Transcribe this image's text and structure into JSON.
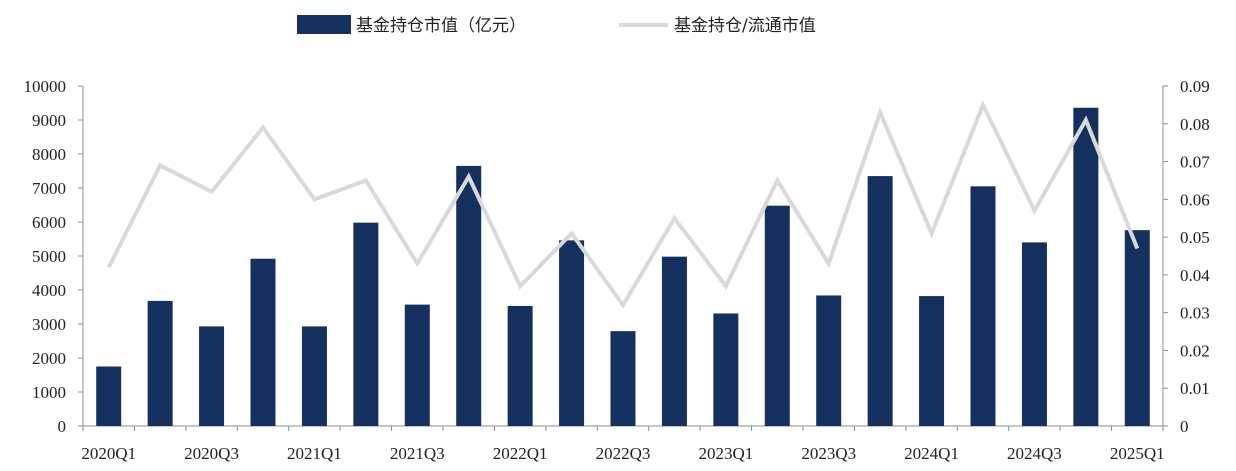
{
  "chart_data": {
    "type": "bar",
    "categories": [
      "2020Q1",
      "2020Q2",
      "2020Q3",
      "2020Q4",
      "2021Q1",
      "2021Q2",
      "2021Q3",
      "2021Q4",
      "2022Q1",
      "2022Q2",
      "2022Q3",
      "2022Q4",
      "2023Q1",
      "2023Q2",
      "2023Q3",
      "2023Q4",
      "2024Q1",
      "2024Q2",
      "2024Q3",
      "2024Q4",
      "2025Q1"
    ],
    "x_tick_labels": [
      "2020Q1",
      "2020Q3",
      "2021Q1",
      "2021Q3",
      "2022Q1",
      "2022Q3",
      "2023Q1",
      "2023Q3",
      "2024Q1",
      "2024Q3",
      "2025Q1"
    ],
    "series": [
      {
        "name": "基金持仓市值（亿元）",
        "type": "bar",
        "axis": "left",
        "color": "#14305e",
        "values": [
          1750,
          3680,
          2930,
          4920,
          2930,
          5980,
          3570,
          7650,
          3530,
          5460,
          2790,
          4980,
          3310,
          6480,
          3840,
          7350,
          3820,
          7050,
          5400,
          9360,
          5760
        ]
      },
      {
        "name": "基金持仓/流通市值",
        "type": "line",
        "axis": "right",
        "color": "#d9d9d9",
        "values": [
          0.042,
          0.069,
          0.062,
          0.079,
          0.06,
          0.065,
          0.043,
          0.066,
          0.037,
          0.051,
          0.032,
          0.055,
          0.037,
          0.065,
          0.043,
          0.083,
          0.051,
          0.085,
          0.057,
          0.081,
          0.047
        ]
      }
    ],
    "y_left": {
      "min": 0,
      "max": 10000,
      "ticks": [
        "0",
        "1000",
        "2000",
        "3000",
        "4000",
        "5000",
        "6000",
        "7000",
        "8000",
        "9000",
        "10000"
      ]
    },
    "y_right": {
      "min": 0,
      "max": 0.09,
      "ticks": [
        "0",
        "0.01",
        "0.02",
        "0.03",
        "0.04",
        "0.05",
        "0.06",
        "0.07",
        "0.08",
        "0.09"
      ]
    },
    "legend_position": "top-center",
    "grid": false
  }
}
